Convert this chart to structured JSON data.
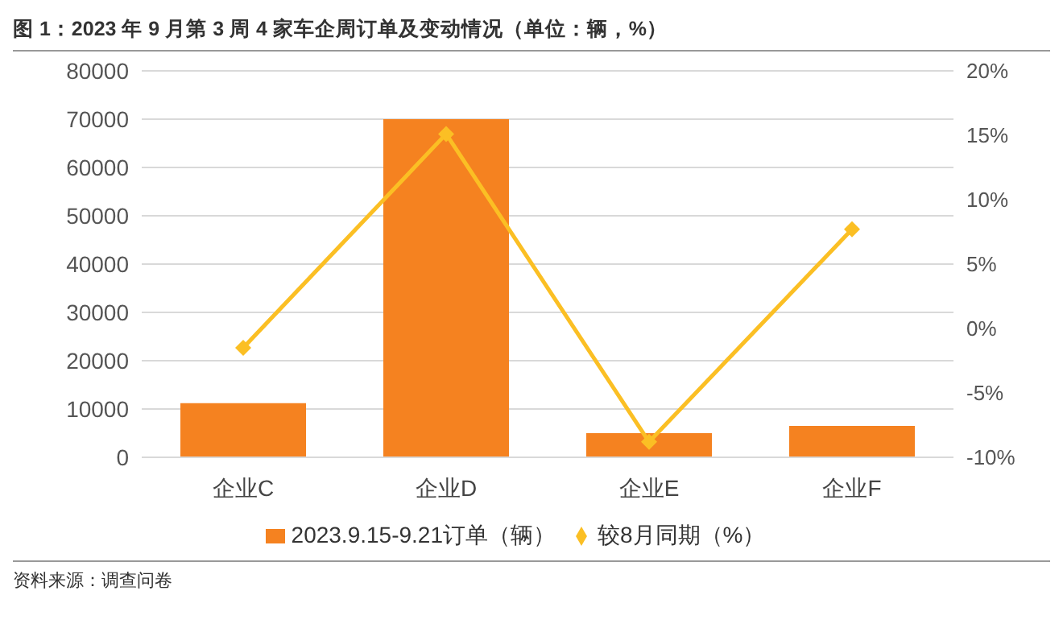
{
  "chart_data": {
    "type": "bar",
    "title": "图 1：2023 年 9 月第 3 周 4 家车企周订单及变动情况（单位：辆，%）",
    "categories": [
      "企业C",
      "企业D",
      "企业E",
      "企业F"
    ],
    "series": [
      {
        "name": "2023.9.15-9.21订单（辆）",
        "color": "#f58220",
        "values": [
          11200,
          70000,
          5000,
          6500
        ]
      },
      {
        "name": "较8月同期（%）",
        "type": "line",
        "axis": "y2",
        "color": "#fbbf24",
        "values": [
          -1.5,
          15.1,
          -8.8,
          7.7
        ]
      }
    ],
    "ylim": [
      0,
      80000
    ],
    "yticks": [
      0,
      10000,
      20000,
      30000,
      40000,
      50000,
      60000,
      70000,
      80000
    ],
    "y2lim": [
      -10,
      20
    ],
    "y2ticks": [
      {
        "value": -10,
        "label": "-10%"
      },
      {
        "value": -5,
        "label": "-5%"
      },
      {
        "value": 0,
        "label": "0%"
      },
      {
        "value": 5,
        "label": "5%"
      },
      {
        "value": 10,
        "label": "10%"
      },
      {
        "value": 15,
        "label": "15%"
      },
      {
        "value": 20,
        "label": "20%"
      }
    ],
    "grid": "y",
    "legend": "bottom",
    "marker": "diamond",
    "annotations": [
      "资料来源：调查问卷"
    ]
  }
}
